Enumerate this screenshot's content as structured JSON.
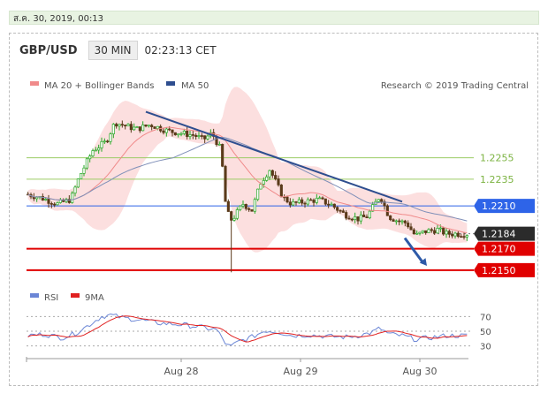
{
  "timestamp": "ส.ค. 30, 2019, 00:13",
  "header": {
    "pair": "GBP/USD",
    "timeframe": "30 MIN",
    "time": "02:23:13 CET"
  },
  "colors": {
    "ma20": "#f08a8a",
    "ma50": "#2e4e8f",
    "band": "#fcd9d9",
    "support": "#e00000",
    "resistance": "#2e64e8",
    "green": "#8bc34a",
    "last": "#2b2b2b",
    "rsi": "#6b86d6",
    "rsi_ma": "#e02020",
    "candle_up": "#26a826",
    "candle_down": "#5a3a1a"
  },
  "chart_data": [
    {
      "type": "candlestick",
      "instrument": "GBP/USD",
      "legend": [
        "MA 20 + Bollinger Bands",
        "MA 50"
      ],
      "credit": "Research © 2019 Trading Central",
      "x_ticks": [
        "Aug 28",
        "Aug 29",
        "Aug 30"
      ],
      "ylim": [
        2140,
        2310
      ],
      "levels": [
        {
          "label": "1.2255",
          "value": 2255,
          "kind": "resistance"
        },
        {
          "label": "1.2235",
          "value": 2235,
          "kind": "resistance"
        },
        {
          "label": "1.2210",
          "value": 2210,
          "kind": "pivot"
        },
        {
          "label": "1.2184",
          "value": 2184,
          "kind": "last"
        },
        {
          "label": "1.2170",
          "value": 2170,
          "kind": "support"
        },
        {
          "label": "1.2150",
          "value": 2150,
          "kind": "support"
        }
      ],
      "trendline": {
        "from": [
          0.27,
          2298
        ],
        "to": [
          0.85,
          2214
        ]
      },
      "arrow": {
        "from": [
          0.856,
          2180
        ],
        "to": [
          0.906,
          2154
        ]
      },
      "price_anchors": [
        [
          0,
          2221
        ],
        [
          0.03,
          2218
        ],
        [
          0.07,
          2212
        ],
        [
          0.1,
          2216
        ],
        [
          0.12,
          2238
        ],
        [
          0.15,
          2262
        ],
        [
          0.18,
          2270
        ],
        [
          0.2,
          2288
        ],
        [
          0.23,
          2284
        ],
        [
          0.25,
          2282
        ],
        [
          0.28,
          2286
        ],
        [
          0.32,
          2280
        ],
        [
          0.35,
          2278
        ],
        [
          0.38,
          2276
        ],
        [
          0.4,
          2272
        ],
        [
          0.42,
          2278
        ],
        [
          0.44,
          2262
        ],
        [
          0.45,
          2214
        ],
        [
          0.46,
          2196
        ],
        [
          0.47,
          2200
        ],
        [
          0.49,
          2212
        ],
        [
          0.51,
          2206
        ],
        [
          0.53,
          2232
        ],
        [
          0.55,
          2244
        ],
        [
          0.56,
          2236
        ],
        [
          0.58,
          2218
        ],
        [
          0.6,
          2212
        ],
        [
          0.63,
          2214
        ],
        [
          0.66,
          2216
        ],
        [
          0.69,
          2211
        ],
        [
          0.72,
          2202
        ],
        [
          0.75,
          2198
        ],
        [
          0.77,
          2200
        ],
        [
          0.79,
          2213
        ],
        [
          0.8,
          2220
        ],
        [
          0.82,
          2200
        ],
        [
          0.84,
          2196
        ],
        [
          0.86,
          2194
        ],
        [
          0.88,
          2182
        ],
        [
          0.9,
          2186
        ],
        [
          0.93,
          2188
        ],
        [
          0.95,
          2184
        ]
      ],
      "rsi": {
        "legend": [
          "RSI",
          "9MA"
        ],
        "y_ticks": [
          70,
          50,
          30
        ],
        "ylim": [
          20,
          80
        ],
        "anchors": [
          [
            0,
            44
          ],
          [
            0.04,
            46
          ],
          [
            0.08,
            41
          ],
          [
            0.11,
            47
          ],
          [
            0.14,
            58
          ],
          [
            0.17,
            70
          ],
          [
            0.19,
            72
          ],
          [
            0.22,
            68
          ],
          [
            0.25,
            66
          ],
          [
            0.3,
            61
          ],
          [
            0.35,
            59
          ],
          [
            0.39,
            56
          ],
          [
            0.43,
            52
          ],
          [
            0.45,
            34
          ],
          [
            0.46,
            28
          ],
          [
            0.48,
            36
          ],
          [
            0.51,
            42
          ],
          [
            0.54,
            51
          ],
          [
            0.57,
            49
          ],
          [
            0.6,
            44
          ],
          [
            0.64,
            45
          ],
          [
            0.68,
            43
          ],
          [
            0.72,
            42
          ],
          [
            0.75,
            44
          ],
          [
            0.78,
            48
          ],
          [
            0.8,
            54
          ],
          [
            0.82,
            46
          ],
          [
            0.85,
            44
          ],
          [
            0.88,
            39
          ],
          [
            0.91,
            41
          ],
          [
            0.95,
            44
          ]
        ]
      }
    }
  ]
}
